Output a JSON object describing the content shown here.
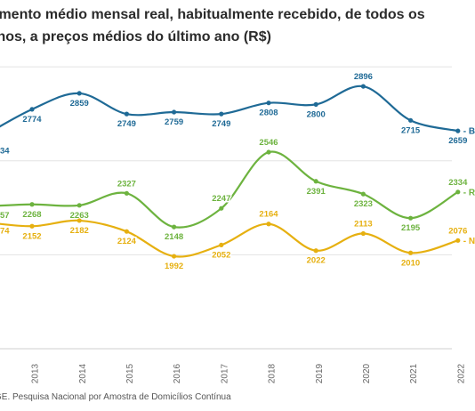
{
  "title_lines": [
    "imento médio mensal real, habitualmente recebido, de todos os",
    "lhos, a preços médios do último ano (R$)"
  ],
  "source": "GE. Pesquisa Nacional por Amostra de Domicílios Contínua",
  "chart_data": {
    "type": "line",
    "title": "imento médio mensal real, habitualmente recebido, de todos os lhos, a preços médios do último ano (R$)",
    "categories": [
      "2013",
      "2014",
      "2015",
      "2016",
      "2017",
      "2018",
      "2019",
      "2020",
      "2021",
      "2022"
    ],
    "x_tick_labels": [
      "2013",
      "2014",
      "2015",
      "2016",
      "2017",
      "2018",
      "2019",
      "2020",
      "2021",
      "2022"
    ],
    "partial_first_point_labels": [
      "34",
      "57",
      "74"
    ],
    "ylim": [
      1500,
      3000
    ],
    "grid": true,
    "series": [
      {
        "name": "BR",
        "label": "BR",
        "color": "#1f6a96",
        "values": [
          2774,
          2859,
          2749,
          2759,
          2749,
          2808,
          2800,
          2896,
          2715,
          2659
        ]
      },
      {
        "name": "RO",
        "label": "RO",
        "color": "#6db33f",
        "values": [
          2268,
          2263,
          2327,
          2148,
          2247,
          2546,
          2391,
          2323,
          2195,
          2334
        ]
      },
      {
        "name": "NO",
        "label": "NO",
        "color": "#e6b010",
        "values": [
          2152,
          2182,
          2124,
          1992,
          2052,
          2164,
          2022,
          2113,
          2010,
          2076
        ]
      }
    ]
  }
}
